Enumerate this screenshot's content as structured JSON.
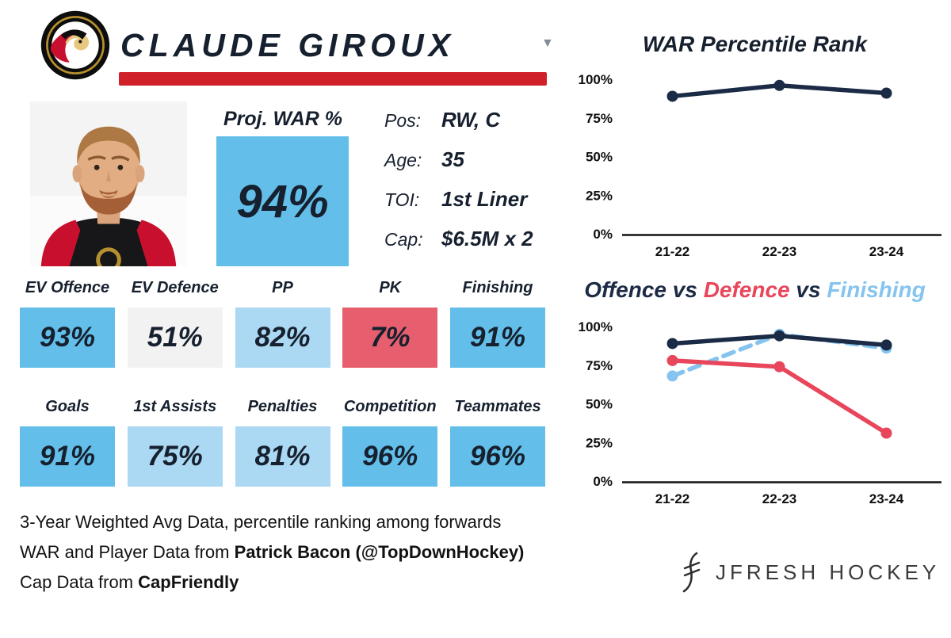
{
  "header": {
    "player_name": "CLAUDE GIROUX",
    "team": "Ottawa Senators"
  },
  "icons": {
    "dropdown": "▼"
  },
  "proj_war": {
    "label": "Proj. WAR %",
    "value": "94%"
  },
  "bio": [
    {
      "label": "Pos:",
      "value": "RW, C"
    },
    {
      "label": "Age:",
      "value": "35"
    },
    {
      "label": "TOI:",
      "value": "1st Liner"
    },
    {
      "label": "Cap:",
      "value": "$6.5M x 2"
    }
  ],
  "stats_row1": [
    {
      "label": "EV Offence",
      "value": "93%",
      "tier": "blue"
    },
    {
      "label": "EV Defence",
      "value": "51%",
      "tier": "gray"
    },
    {
      "label": "PP",
      "value": "82%",
      "tier": "lightblue"
    },
    {
      "label": "PK",
      "value": "7%",
      "tier": "red"
    },
    {
      "label": "Finishing",
      "value": "91%",
      "tier": "blue"
    }
  ],
  "stats_row2": [
    {
      "label": "Goals",
      "value": "91%",
      "tier": "blue"
    },
    {
      "label": "1st Assists",
      "value": "75%",
      "tier": "lightblue"
    },
    {
      "label": "Penalties",
      "value": "81%",
      "tier": "lightblue"
    },
    {
      "label": "Competition",
      "value": "96%",
      "tier": "blue"
    },
    {
      "label": "Teammates",
      "value": "96%",
      "tier": "blue"
    }
  ],
  "footer": {
    "line1": "3-Year Weighted Avg Data, percentile ranking among forwards",
    "line2_prefix": "WAR and Player Data from ",
    "line2_bold": "Patrick Bacon (@TopDownHockey)",
    "line3_prefix": "Cap Data from ",
    "line3_bold": "CapFriendly"
  },
  "branding": {
    "name": "JFRESH HOCKEY"
  },
  "colors": {
    "navy": "#16202e",
    "red_accent": "#d0212b",
    "box_blue": "#63bfe9",
    "box_lightblue": "#abd8f2",
    "box_gray": "#f2f2f2",
    "box_red": "#e75f6e",
    "line_navy": "#1b2a45",
    "line_red": "#e8465a",
    "line_lightblue": "#85c4ef"
  },
  "chart_data": [
    {
      "type": "line",
      "title": "WAR Percentile Rank",
      "categories": [
        "21-22",
        "22-23",
        "23-24"
      ],
      "series": [
        {
          "name": "WAR Percentile",
          "values": [
            89,
            96,
            91
          ],
          "color": "#1b2a45",
          "dashed": false
        }
      ],
      "ylim": [
        0,
        100
      ],
      "yticks": [
        "0%",
        "25%",
        "50%",
        "75%",
        "100%"
      ],
      "grid": false,
      "legend": "none"
    },
    {
      "type": "line",
      "title": "Offence vs Defence vs Finishing",
      "title_parts": [
        {
          "text": "Offence",
          "color": "#1b2a45"
        },
        {
          "text": " vs ",
          "color": "#1b2a45"
        },
        {
          "text": "Defence",
          "color": "#e8465a"
        },
        {
          "text": " vs ",
          "color": "#1b2a45"
        },
        {
          "text": "Finishing",
          "color": "#85c4ef"
        }
      ],
      "categories": [
        "21-22",
        "22-23",
        "23-24"
      ],
      "series": [
        {
          "name": "Offence",
          "values": [
            89,
            94,
            88
          ],
          "color": "#1b2a45",
          "dashed": false
        },
        {
          "name": "Defence",
          "values": [
            78,
            74,
            31
          ],
          "color": "#e8465a",
          "dashed": false
        },
        {
          "name": "Finishing",
          "values": [
            68,
            95,
            86
          ],
          "color": "#85c4ef",
          "dashed": true
        }
      ],
      "ylim": [
        0,
        100
      ],
      "yticks": [
        "0%",
        "25%",
        "50%",
        "75%",
        "100%"
      ],
      "grid": false,
      "legend": "in-title"
    }
  ]
}
